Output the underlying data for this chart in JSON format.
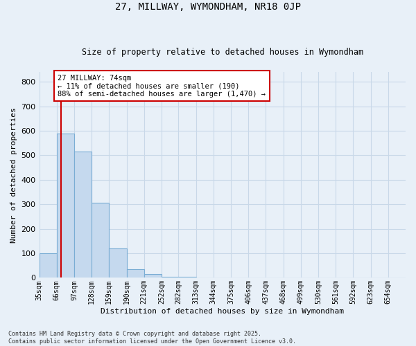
{
  "title1": "27, MILLWAY, WYMONDHAM, NR18 0JP",
  "title2": "Size of property relative to detached houses in Wymondham",
  "xlabel": "Distribution of detached houses by size in Wymondham",
  "ylabel": "Number of detached properties",
  "bin_labels": [
    "35sqm",
    "66sqm",
    "97sqm",
    "128sqm",
    "159sqm",
    "190sqm",
    "221sqm",
    "252sqm",
    "282sqm",
    "313sqm",
    "344sqm",
    "375sqm",
    "406sqm",
    "437sqm",
    "468sqm",
    "499sqm",
    "530sqm",
    "561sqm",
    "592sqm",
    "623sqm",
    "654sqm"
  ],
  "bin_edges": [
    35,
    66,
    97,
    128,
    159,
    190,
    221,
    252,
    282,
    313,
    344,
    375,
    406,
    437,
    468,
    499,
    530,
    561,
    592,
    623,
    654,
    685
  ],
  "values": [
    100,
    590,
    515,
    305,
    120,
    35,
    15,
    5,
    3,
    2,
    1,
    1,
    1,
    0,
    0,
    0,
    0,
    0,
    0,
    0,
    1
  ],
  "bar_facecolor": "#c5d9ee",
  "bar_edgecolor": "#7aadd4",
  "grid_color": "#c8d8e8",
  "bg_color": "#e8f0f8",
  "property_size": 74,
  "vline_color": "#cc0000",
  "annotation_text": "27 MILLWAY: 74sqm\n← 11% of detached houses are smaller (190)\n88% of semi-detached houses are larger (1,470) →",
  "annotation_box_facecolor": "#ffffff",
  "annotation_box_edgecolor": "#cc0000",
  "ylim": [
    0,
    840
  ],
  "yticks": [
    0,
    100,
    200,
    300,
    400,
    500,
    600,
    700,
    800
  ],
  "footer1": "Contains HM Land Registry data © Crown copyright and database right 2025.",
  "footer2": "Contains public sector information licensed under the Open Government Licence v3.0."
}
